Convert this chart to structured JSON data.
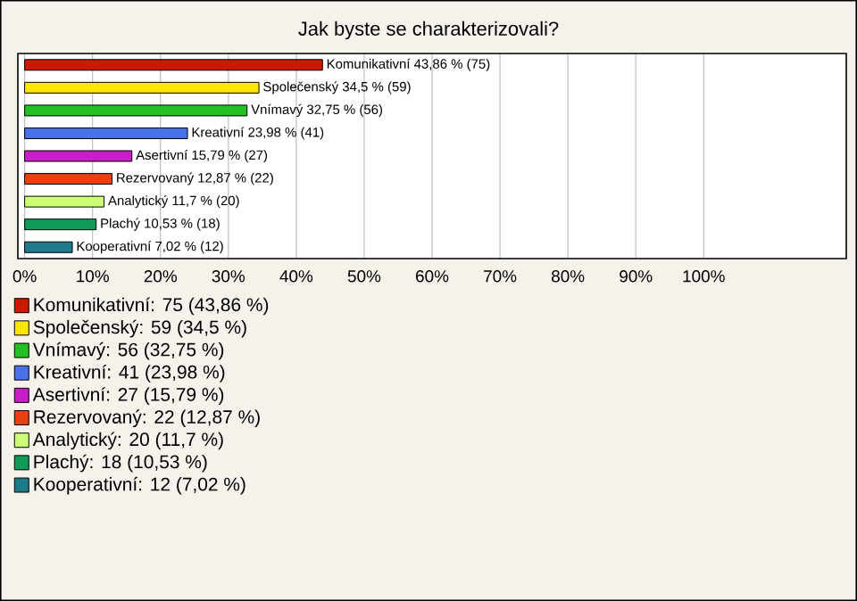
{
  "chart_data": {
    "type": "bar",
    "orientation": "horizontal",
    "title": "Jak byste se charakterizovali?",
    "categories": [
      null,
      null,
      null,
      null,
      null,
      null,
      null,
      null,
      null
    ],
    "series": [
      {
        "name": "Komunikativní: 75 (43,86 %)",
        "color": "#cc1a00",
        "values": [
          43.86,
          null,
          null,
          null,
          null,
          null,
          null,
          null,
          null
        ],
        "value_labels": [
          "Komunikativní 43,86 % (75)",
          null,
          null,
          null,
          null,
          null,
          null,
          null,
          null
        ]
      },
      {
        "name": "Společenský: 59 (34,5 %)",
        "color": "#ffe600",
        "values": [
          null,
          34.5,
          null,
          null,
          null,
          null,
          null,
          null,
          null
        ],
        "value_labels": [
          null,
          "Společenský 34,5 % (59)",
          null,
          null,
          null,
          null,
          null,
          null,
          null
        ]
      },
      {
        "name": "Vnímavý: 56 (32,75 %)",
        "color": "#22c022",
        "values": [
          null,
          null,
          32.75,
          null,
          null,
          null,
          null,
          null,
          null
        ],
        "value_labels": [
          null,
          null,
          "Vnímavý 32,75 % (56)",
          null,
          null,
          null,
          null,
          null,
          null
        ]
      },
      {
        "name": "Kreativní: 41 (23,98 %)",
        "color": "#4a72e8",
        "values": [
          null,
          null,
          null,
          23.98,
          null,
          null,
          null,
          null,
          null
        ],
        "value_labels": [
          null,
          null,
          null,
          "Kreativní 23,98 % (41)",
          null,
          null,
          null,
          null,
          null
        ]
      },
      {
        "name": "Asertivní: 27 (15,79 %)",
        "color": "#c81ec8",
        "values": [
          null,
          null,
          null,
          null,
          15.79,
          null,
          null,
          null,
          null
        ],
        "value_labels": [
          null,
          null,
          null,
          null,
          "Asertivní 15,79 % (27)",
          null,
          null,
          null,
          null
        ]
      },
      {
        "name": "Rezervovaný: 22 (12,87 %)",
        "color": "#e84010",
        "values": [
          null,
          null,
          null,
          null,
          null,
          12.87,
          null,
          null,
          null
        ],
        "value_labels": [
          null,
          null,
          null,
          null,
          null,
          "Rezervovaný 12,87 % (22)",
          null,
          null,
          null
        ]
      },
      {
        "name": "Analytický: 20 (11,7 %)",
        "color": "#ccff77",
        "values": [
          null,
          null,
          null,
          null,
          null,
          null,
          11.7,
          null,
          null
        ],
        "value_labels": [
          null,
          null,
          null,
          null,
          null,
          null,
          "Analytický 11,7 % (20)",
          null,
          null
        ]
      },
      {
        "name": "Plachý: 18 (10,53 %)",
        "color": "#129a58",
        "values": [
          null,
          null,
          null,
          null,
          null,
          null,
          null,
          10.53,
          null
        ],
        "value_labels": [
          null,
          null,
          null,
          null,
          null,
          null,
          null,
          "Plachý 10,53 % (18)",
          null
        ]
      },
      {
        "name": "Kooperativní: 12 (7,02 %)",
        "color": "#1f7a8c",
        "values": [
          null,
          null,
          null,
          null,
          null,
          null,
          null,
          null,
          7.02
        ],
        "value_labels": [
          null,
          null,
          null,
          null,
          null,
          null,
          null,
          null,
          "Kooperativní 7,02 % (12)"
        ]
      }
    ],
    "xlim": [
      -1,
      121
    ],
    "xticks": [
      {
        "value": 0,
        "label": "0%"
      },
      {
        "value": 10,
        "label": "10%"
      },
      {
        "value": 20,
        "label": "20%"
      },
      {
        "value": 30,
        "label": "30%"
      },
      {
        "value": 40,
        "label": "40%"
      },
      {
        "value": 50,
        "label": "50%"
      },
      {
        "value": 60,
        "label": "60%"
      },
      {
        "value": 70,
        "label": "70%"
      },
      {
        "value": 80,
        "label": "80%"
      },
      {
        "value": 90,
        "label": "90%"
      },
      {
        "value": 100,
        "label": "100%"
      }
    ],
    "grid": "x",
    "legend": "bottom",
    "tick_labels": "x"
  }
}
